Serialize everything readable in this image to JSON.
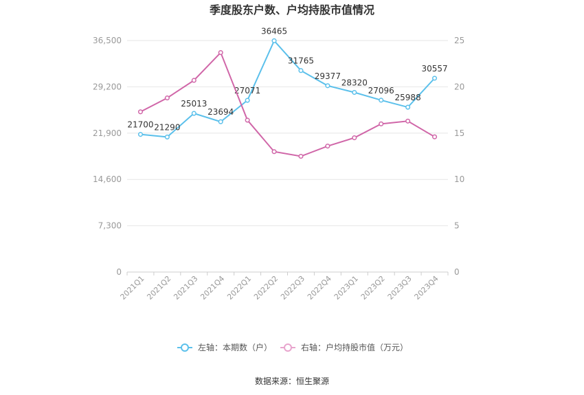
{
  "chart_data": {
    "type": "line",
    "title": "季度股东户数、户均持股市值情况",
    "categories": [
      "2021Q1",
      "2021Q2",
      "2021Q3",
      "2021Q4",
      "2022Q1",
      "2022Q2",
      "2022Q3",
      "2022Q4",
      "2023Q1",
      "2023Q2",
      "2023Q3",
      "2023Q4"
    ],
    "left_axis": {
      "ticks": [
        "0",
        "7,300",
        "14,600",
        "21,900",
        "29,200",
        "36,500"
      ],
      "min": 0,
      "max": 36500
    },
    "right_axis": {
      "ticks": [
        "0",
        "5",
        "10",
        "15",
        "20",
        "25"
      ],
      "min": 0,
      "max": 25
    },
    "series": [
      {
        "name": "左轴：本期数（户）",
        "axis": "left",
        "color": "#5bc0eb",
        "values": [
          21700,
          21290,
          25013,
          23694,
          27071,
          36465,
          31765,
          29377,
          28320,
          27096,
          25988,
          30557
        ],
        "labels": [
          "21700",
          "21290",
          "25013",
          "23694",
          "27071",
          "36465",
          "31765",
          "29377",
          "28320",
          "27096",
          "25988",
          "30557"
        ]
      },
      {
        "name": "右轴：户均持股市值（万元）",
        "axis": "right",
        "color": "#d066a8",
        "values": [
          17.3,
          18.8,
          20.7,
          23.7,
          16.4,
          13.0,
          12.5,
          13.6,
          14.5,
          16.0,
          16.3,
          14.6
        ]
      }
    ],
    "legend_position": "bottom",
    "grid": true
  },
  "source": "数据来源：恒生聚源"
}
